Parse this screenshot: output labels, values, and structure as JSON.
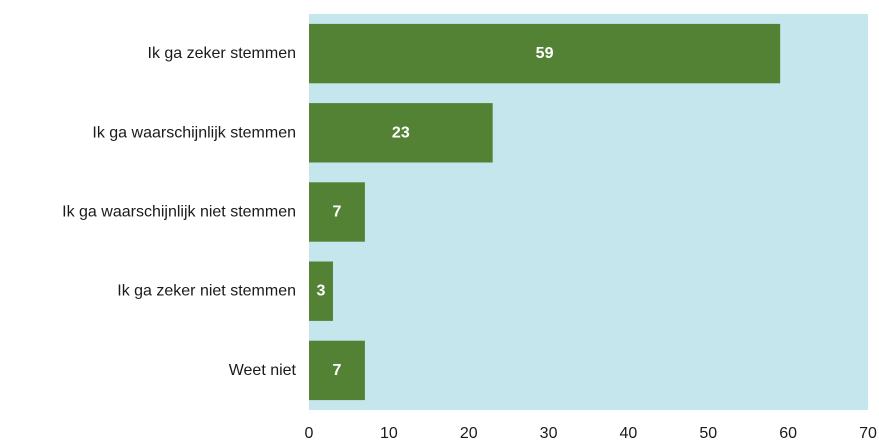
{
  "chart_data": {
    "type": "bar",
    "orientation": "horizontal",
    "categories": [
      "Ik ga zeker stemmen",
      "Ik ga waarschijnlijk stemmen",
      "Ik ga waarschijnlijk niet stemmen",
      "Ik ga zeker niet stemmen",
      "Weet niet"
    ],
    "values": [
      59,
      23,
      7,
      3,
      7
    ],
    "data_labels": [
      "59",
      "23",
      "7",
      "3",
      "7"
    ],
    "xlim": [
      0,
      70
    ],
    "x_ticks": [
      0,
      10,
      20,
      30,
      40,
      50,
      60,
      70
    ],
    "x_tick_labels": [
      "0",
      "10",
      "20",
      "30",
      "40",
      "50",
      "60",
      "70"
    ],
    "title": "",
    "xlabel": "",
    "ylabel": "",
    "grid": false,
    "legend": "none",
    "colors": {
      "bar": "#548235",
      "plot_background": "#c5e6ec",
      "data_label": "#ffffff",
      "text": "#1a1a1a"
    }
  }
}
